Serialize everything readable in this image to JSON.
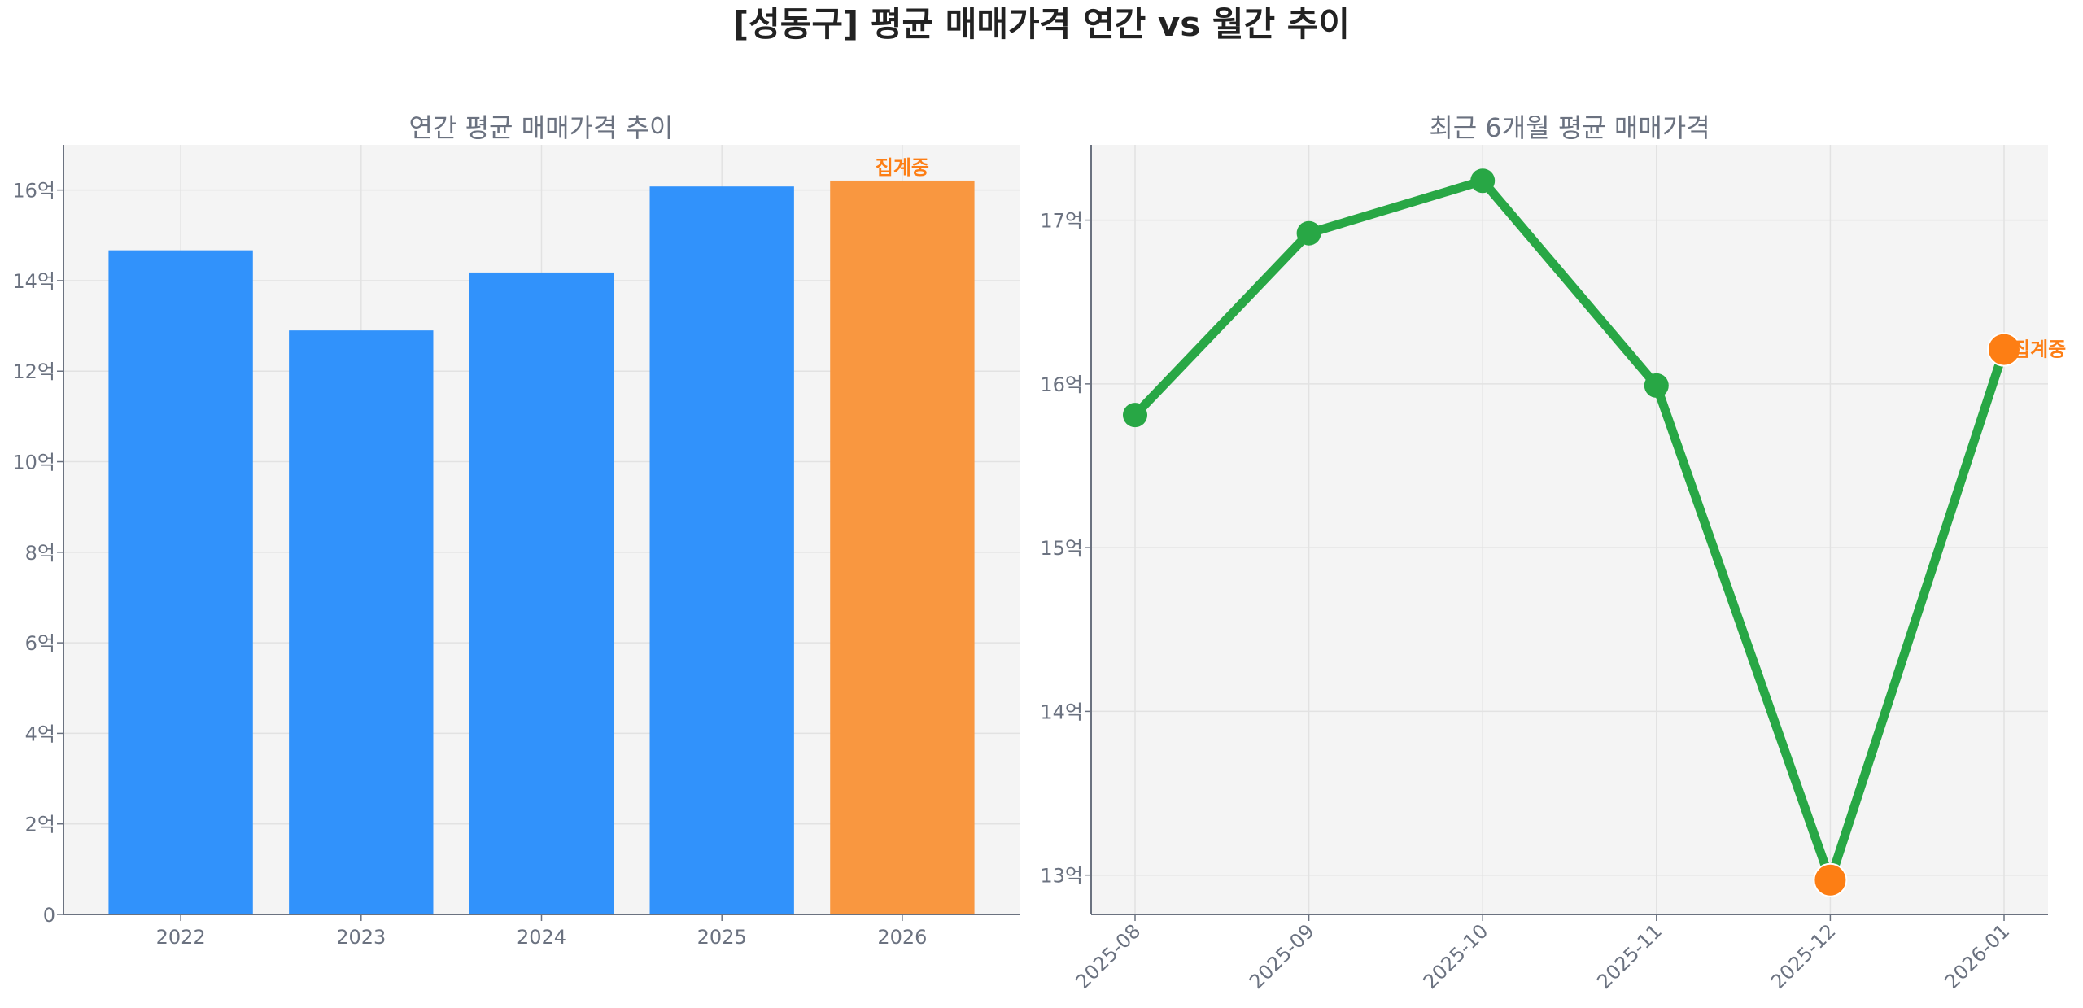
{
  "title": "[성동구] 평균 매매가격 연간 vs 월간 추이",
  "colors": {
    "bar": "#3192fb",
    "bar_partial": "#f99740",
    "line": "#28a745",
    "partial_point": "#fd7e14",
    "label_partial": "#fd7e14",
    "axes_bg": "#f4f4f4",
    "text": "#6b7280"
  },
  "chart_data": [
    {
      "type": "bar",
      "title": "연간 평균 매매가격 추이",
      "categories": [
        "2022",
        "2023",
        "2024",
        "2025",
        "2026"
      ],
      "values": [
        14.67,
        12.9,
        14.18,
        16.08,
        16.21
      ],
      "partial_index": 4,
      "partial_label": "집계중",
      "ylim": [
        0,
        17
      ],
      "yticks": [
        0,
        2,
        4,
        6,
        8,
        10,
        12,
        14,
        16
      ],
      "ytick_labels": [
        "0",
        "2억",
        "4억",
        "6억",
        "8억",
        "10억",
        "12억",
        "14억",
        "16억"
      ],
      "grid": true
    },
    {
      "type": "line",
      "title": "최근 6개월 평균 매매가격",
      "categories": [
        "2025-08",
        "2025-09",
        "2025-10",
        "2025-11",
        "2025-12",
        "2026-01"
      ],
      "values": [
        15.81,
        16.92,
        17.24,
        15.99,
        12.97,
        16.21
      ],
      "highlight_indices": [
        4,
        5
      ],
      "partial_index": 5,
      "partial_label": "집계중",
      "ylim": [
        12.76,
        17.46
      ],
      "yticks": [
        13,
        14,
        15,
        16,
        17
      ],
      "ytick_labels": [
        "13억",
        "14억",
        "15억",
        "16억",
        "17억"
      ],
      "grid": true
    }
  ]
}
